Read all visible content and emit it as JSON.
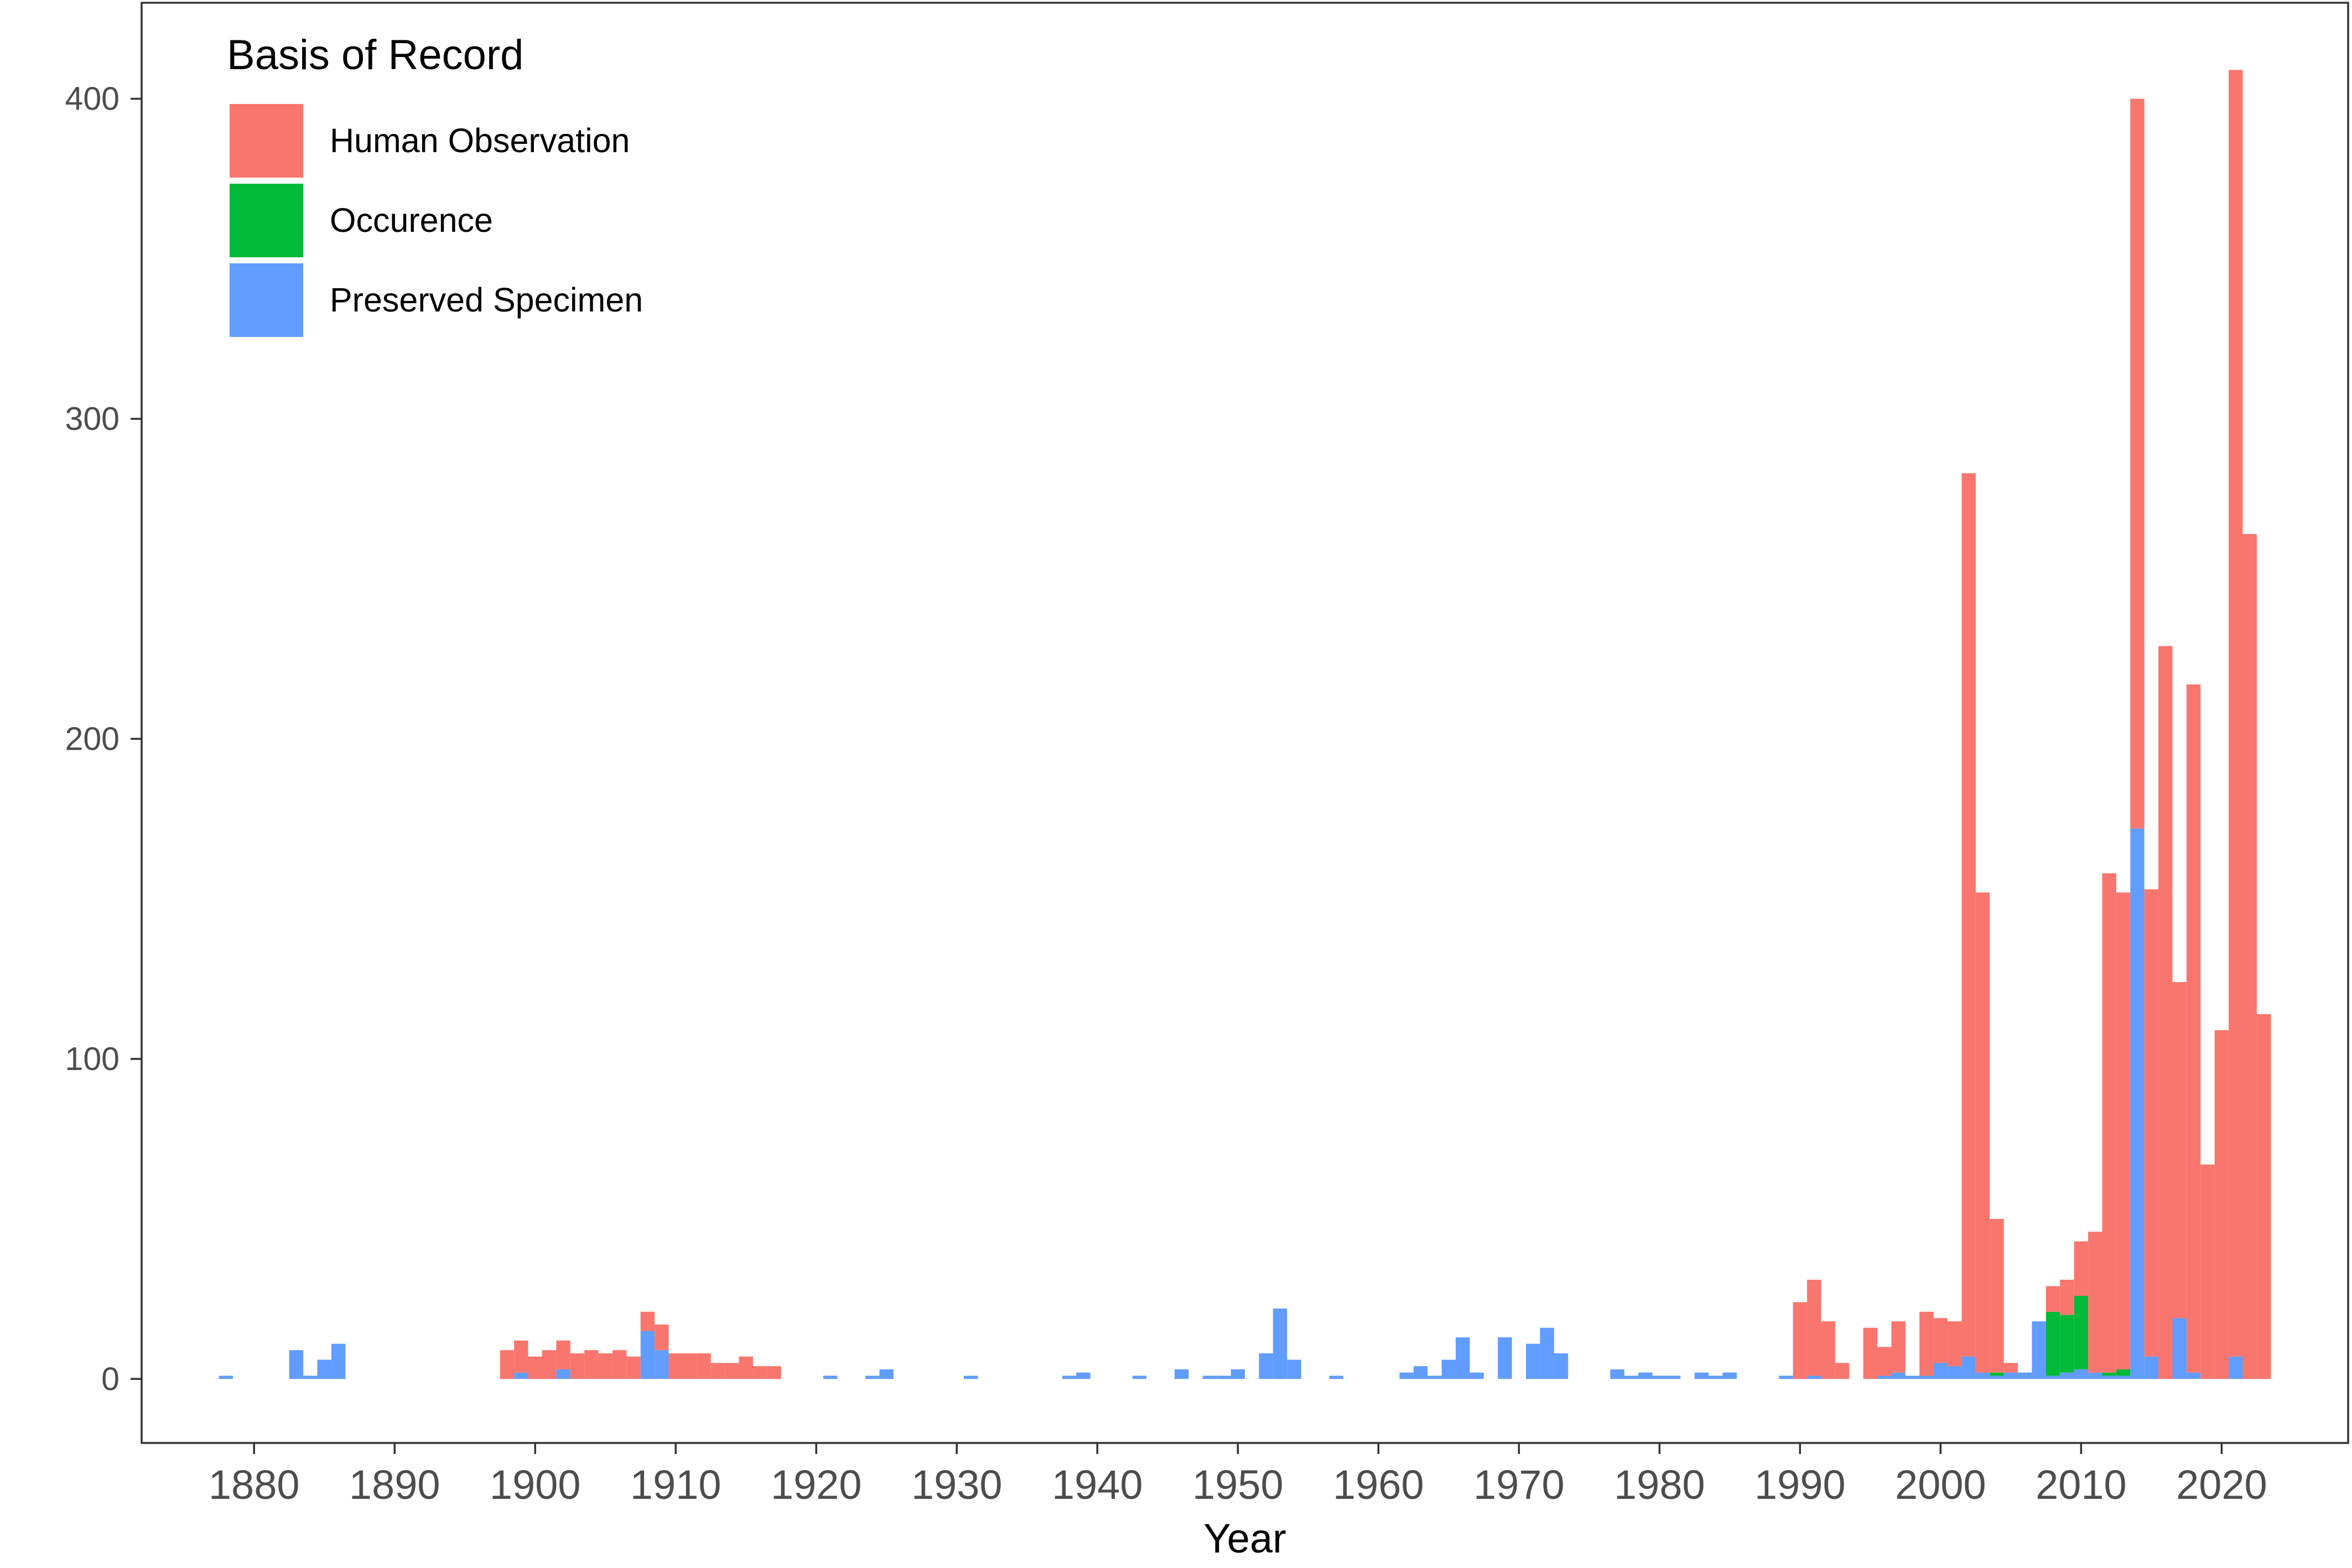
{
  "chart_data": {
    "type": "bar",
    "stacked": true,
    "title": "",
    "xlabel": "Year",
    "ylabel": "",
    "xlim": [
      1872,
      2029
    ],
    "ylim": [
      -20,
      430
    ],
    "x_ticks": [
      1880,
      1890,
      1900,
      1910,
      1920,
      1930,
      1940,
      1950,
      1960,
      1970,
      1980,
      1990,
      2000,
      2010,
      2020
    ],
    "y_ticks": [
      0,
      100,
      200,
      300,
      400
    ],
    "grid": false,
    "legend": {
      "title": "Basis of Record",
      "position": "top-left",
      "entries": [
        "Human Observation",
        "Occurence",
        "Preserved Specimen"
      ]
    },
    "stack_order_bottom_to_top": [
      "Preserved Specimen",
      "Occurence",
      "Human Observation"
    ],
    "series": [
      {
        "name": "Preserved Specimen",
        "color": "#619CFF",
        "points": [
          [
            1878,
            1
          ],
          [
            1883,
            9
          ],
          [
            1884,
            1
          ],
          [
            1885,
            6
          ],
          [
            1886,
            11
          ],
          [
            1899,
            2
          ],
          [
            1902,
            3
          ],
          [
            1908,
            15
          ],
          [
            1909,
            9
          ],
          [
            1921,
            1
          ],
          [
            1924,
            1
          ],
          [
            1925,
            3
          ],
          [
            1931,
            1
          ],
          [
            1938,
            1
          ],
          [
            1939,
            2
          ],
          [
            1943,
            1
          ],
          [
            1946,
            3
          ],
          [
            1948,
            1
          ],
          [
            1949,
            1
          ],
          [
            1950,
            3
          ],
          [
            1952,
            8
          ],
          [
            1953,
            22
          ],
          [
            1954,
            6
          ],
          [
            1957,
            1
          ],
          [
            1962,
            2
          ],
          [
            1963,
            4
          ],
          [
            1964,
            1
          ],
          [
            1965,
            6
          ],
          [
            1966,
            13
          ],
          [
            1967,
            2
          ],
          [
            1969,
            13
          ],
          [
            1971,
            11
          ],
          [
            1972,
            16
          ],
          [
            1973,
            8
          ],
          [
            1977,
            3
          ],
          [
            1978,
            1
          ],
          [
            1979,
            2
          ],
          [
            1980,
            1
          ],
          [
            1981,
            1
          ],
          [
            1983,
            2
          ],
          [
            1984,
            1
          ],
          [
            1985,
            2
          ],
          [
            1989,
            1
          ],
          [
            1991,
            1
          ],
          [
            1996,
            1
          ],
          [
            1997,
            2
          ],
          [
            1998,
            1
          ],
          [
            1999,
            1
          ],
          [
            2000,
            5
          ],
          [
            2001,
            4
          ],
          [
            2002,
            7
          ],
          [
            2003,
            2
          ],
          [
            2004,
            1
          ],
          [
            2005,
            2
          ],
          [
            2006,
            2
          ],
          [
            2007,
            18
          ],
          [
            2008,
            1
          ],
          [
            2009,
            2
          ],
          [
            2010,
            3
          ],
          [
            2011,
            2
          ],
          [
            2012,
            1
          ],
          [
            2013,
            1
          ],
          [
            2014,
            172
          ],
          [
            2015,
            7
          ],
          [
            2017,
            19
          ],
          [
            2018,
            2
          ],
          [
            2021,
            7
          ]
        ]
      },
      {
        "name": "Occurence",
        "color": "#00BA38",
        "points": [
          [
            2004,
            1
          ],
          [
            2008,
            20
          ],
          [
            2009,
            18
          ],
          [
            2010,
            23
          ],
          [
            2012,
            1
          ],
          [
            2013,
            2
          ]
        ]
      },
      {
        "name": "Human Observation",
        "color": "#F8766D",
        "points": [
          [
            1898,
            9
          ],
          [
            1899,
            10
          ],
          [
            1900,
            7
          ],
          [
            1901,
            9
          ],
          [
            1902,
            9
          ],
          [
            1903,
            8
          ],
          [
            1904,
            9
          ],
          [
            1905,
            8
          ],
          [
            1906,
            9
          ],
          [
            1907,
            7
          ],
          [
            1908,
            6
          ],
          [
            1909,
            8
          ],
          [
            1910,
            8
          ],
          [
            1911,
            8
          ],
          [
            1912,
            8
          ],
          [
            1913,
            5
          ],
          [
            1914,
            5
          ],
          [
            1915,
            7
          ],
          [
            1916,
            4
          ],
          [
            1917,
            4
          ],
          [
            1990,
            24
          ],
          [
            1991,
            30
          ],
          [
            1992,
            18
          ],
          [
            1993,
            5
          ],
          [
            1995,
            16
          ],
          [
            1996,
            9
          ],
          [
            1997,
            16
          ],
          [
            1999,
            20
          ],
          [
            2000,
            14
          ],
          [
            2001,
            14
          ],
          [
            2002,
            276
          ],
          [
            2003,
            150
          ],
          [
            2004,
            48
          ],
          [
            2005,
            3
          ],
          [
            2008,
            8
          ],
          [
            2009,
            11
          ],
          [
            2010,
            17
          ],
          [
            2011,
            44
          ],
          [
            2012,
            156
          ],
          [
            2013,
            149
          ],
          [
            2014,
            228
          ],
          [
            2015,
            146
          ],
          [
            2016,
            229
          ],
          [
            2017,
            105
          ],
          [
            2018,
            215
          ],
          [
            2019,
            67
          ],
          [
            2020,
            109
          ],
          [
            2021,
            402
          ],
          [
            2022,
            264
          ],
          [
            2023,
            114
          ]
        ]
      }
    ]
  }
}
